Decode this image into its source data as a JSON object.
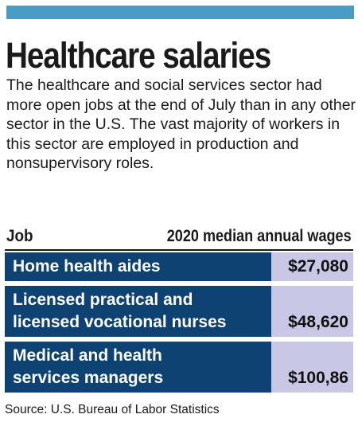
{
  "colors": {
    "top_bar": "#4a9cc4",
    "job_cell": "#0d4272",
    "wage_cell": "#c8c7e6"
  },
  "header": {
    "title": "Healthcare salaries",
    "subtitle": "The healthcare and social services sector had more open jobs at the end of July than in any other sector in the U.S. The vast majority of workers in this sector are employed in production and nonsupervisory roles."
  },
  "chart_data": {
    "type": "table",
    "columns": [
      "Job",
      "2020 median annual wages"
    ],
    "rows": [
      {
        "job_line1": "Home health aides",
        "job_line2": "",
        "wage": "$27,080"
      },
      {
        "job_line1": "Licensed practical and",
        "job_line2": "licensed vocational nurses",
        "wage": "$48,620"
      },
      {
        "job_line1": "Medical and health",
        "job_line2": "services managers",
        "wage": "$100,86"
      }
    ]
  },
  "footer": {
    "source": "Source: U.S. Bureau of Labor Statistics"
  }
}
